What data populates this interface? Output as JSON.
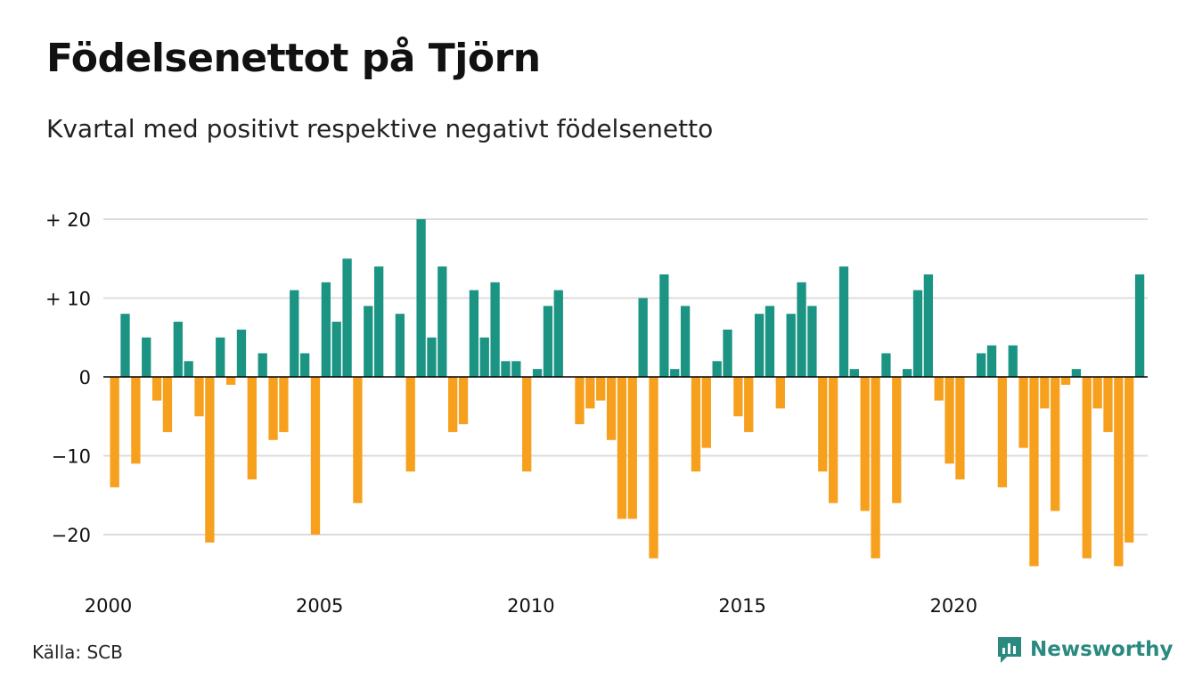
{
  "title": "Födelsenettot på Tjörn",
  "subtitle": "Kvartal med positivt respektive negativt födelsenetto",
  "source": "Källa: SCB",
  "brand": {
    "name": "Newsworthy",
    "logo_icon": "chart-speech-bubble-icon"
  },
  "colors": {
    "positive": "#1c9483",
    "negative": "#f6a01d",
    "grid": "#dcdcdc",
    "zero": "#000000"
  },
  "chart_data": {
    "type": "bar",
    "x_unit": "quarter",
    "x_start": "2000 Q1",
    "grid": true,
    "ylim": [
      -26,
      21
    ],
    "y_ticks": [
      {
        "value": 20,
        "label": "+ 20"
      },
      {
        "value": 10,
        "label": "+ 10"
      },
      {
        "value": 0,
        "label": "0"
      },
      {
        "value": -10,
        "label": "−10"
      },
      {
        "value": -20,
        "label": "−20"
      }
    ],
    "x_ticks": [
      "2000",
      "2005",
      "2010",
      "2015",
      "2020"
    ],
    "values": [
      -14,
      8,
      -11,
      5,
      -3,
      -7,
      7,
      2,
      -5,
      -21,
      5,
      -1,
      6,
      -13,
      3,
      -8,
      -7,
      11,
      3,
      -20,
      12,
      7,
      15,
      -16,
      9,
      14,
      0,
      8,
      -12,
      20,
      5,
      14,
      -7,
      -6,
      11,
      5,
      12,
      2,
      2,
      -12,
      1,
      9,
      11,
      0,
      -6,
      -4,
      -3,
      -8,
      -18,
      -18,
      10,
      -23,
      13,
      1,
      9,
      -12,
      -9,
      2,
      6,
      -5,
      -7,
      8,
      9,
      -4,
      8,
      12,
      9,
      -12,
      -16,
      14,
      1,
      -17,
      -23,
      3,
      -16,
      1,
      11,
      13,
      -3,
      -11,
      -13,
      0,
      3,
      4,
      -14,
      4,
      -9,
      -24,
      -4,
      -17,
      -1,
      1,
      -23,
      -4,
      -7,
      -24,
      -21,
      13
    ]
  }
}
